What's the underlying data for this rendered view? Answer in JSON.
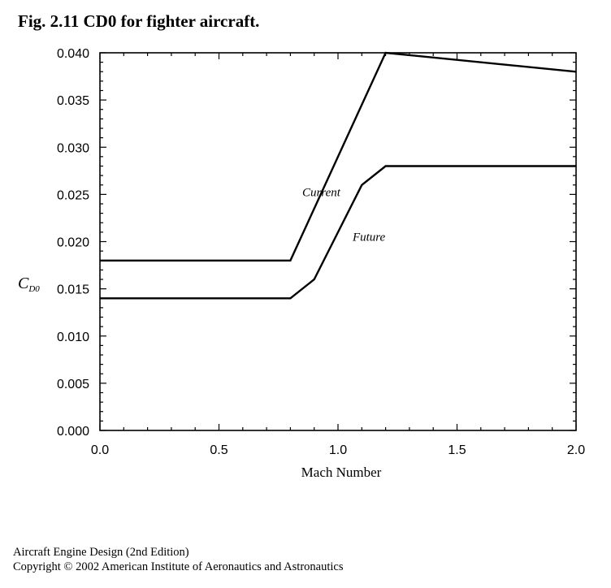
{
  "figure_title": "Fig. 2.11 CD0 for fighter aircraft.",
  "footer": {
    "line1": "Aircraft Engine Design (2nd Edition)",
    "line2": "Copyright © 2002 American Institute of Aeronautics and Astronautics"
  },
  "chart_data": {
    "type": "line",
    "title": "",
    "xlabel": "Mach Number",
    "ylabel_main": "C",
    "ylabel_sub": "D0",
    "xlim": [
      0,
      2
    ],
    "ylim": [
      0,
      0.04
    ],
    "xticks": [
      "0.0",
      "0.5",
      "1.0",
      "1.5",
      "2.0"
    ],
    "xtick_values": [
      0,
      0.5,
      1.0,
      1.5,
      2.0
    ],
    "yticks": [
      "0.000",
      "0.005",
      "0.010",
      "0.015",
      "0.020",
      "0.025",
      "0.030",
      "0.035",
      "0.040"
    ],
    "ytick_values": [
      0,
      0.005,
      0.01,
      0.015,
      0.02,
      0.025,
      0.03,
      0.035,
      0.04
    ],
    "grid": false,
    "series": [
      {
        "name": "Current",
        "x": [
          0,
          0.8,
          1.2,
          2.0
        ],
        "y": [
          0.018,
          0.018,
          0.04,
          0.038
        ]
      },
      {
        "name": "Future",
        "x": [
          0,
          0.8,
          0.9,
          1.1,
          1.2,
          2.0
        ],
        "y": [
          0.014,
          0.014,
          0.016,
          0.026,
          0.028,
          0.028
        ]
      }
    ],
    "annotations": [
      {
        "text": "Current",
        "series": 0,
        "x": 0.93,
        "y": 0.0248
      },
      {
        "text": "Future",
        "series": 1,
        "x": 1.13,
        "y": 0.0201
      }
    ]
  }
}
